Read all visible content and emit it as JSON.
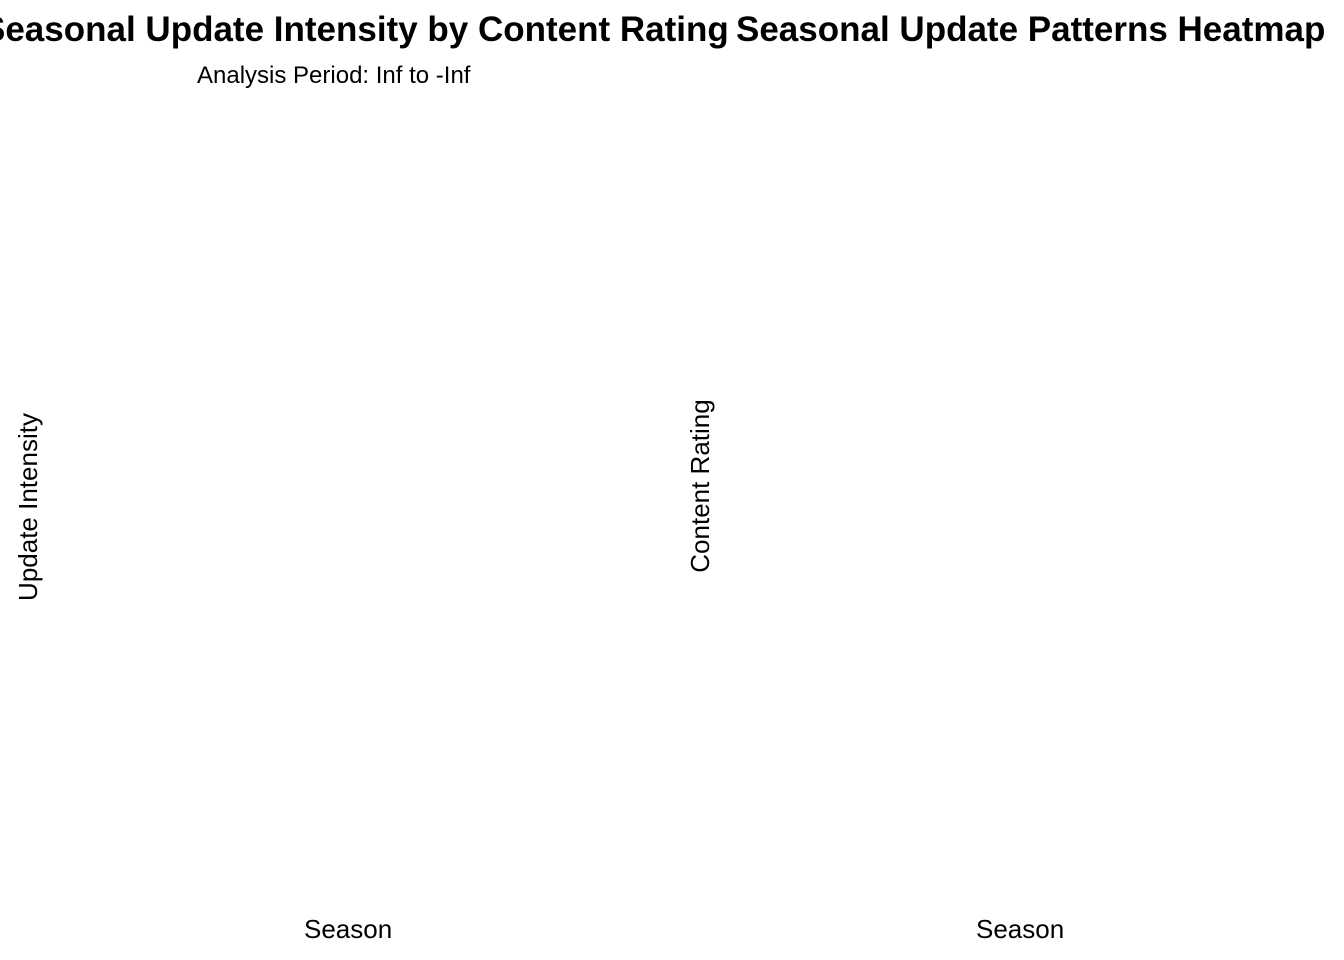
{
  "chart_data": [
    {
      "type": "line",
      "title": "Seasonal Update Intensity by Content Rating",
      "subtitle": "Analysis Period: Inf to -Inf",
      "xlabel": "Season",
      "ylabel": "Update Intensity",
      "series": [],
      "grid": false
    },
    {
      "type": "heatmap",
      "title": "Seasonal Update Patterns Heatmap",
      "xlabel": "Season",
      "ylabel": "Content Rating",
      "cells": [],
      "grid": false
    }
  ]
}
